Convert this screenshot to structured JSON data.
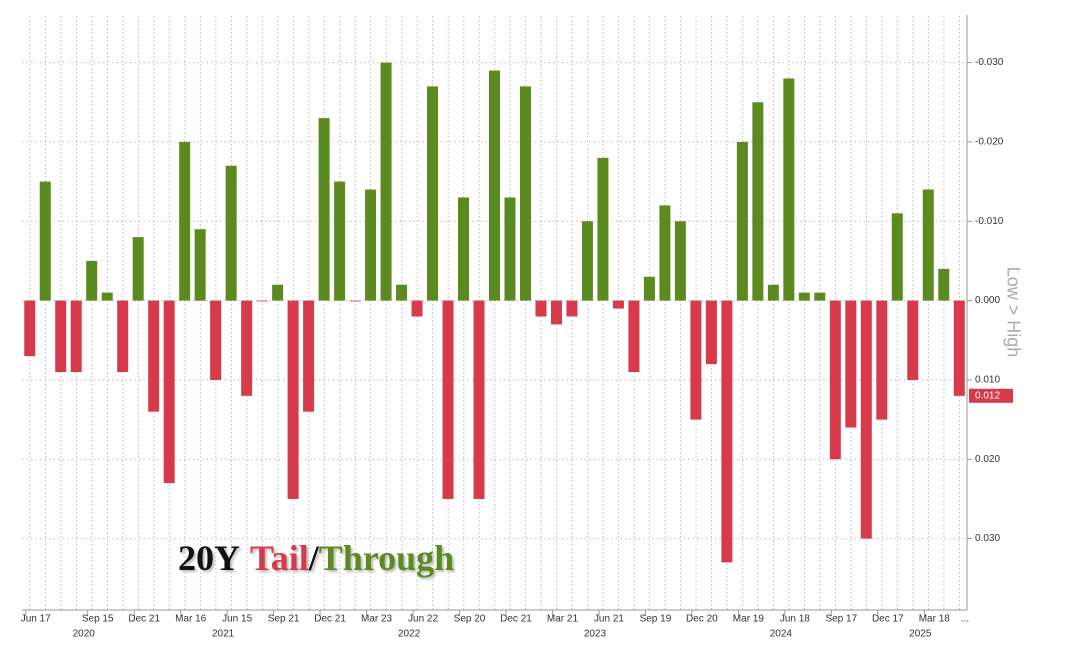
{
  "chart_data": {
    "type": "bar",
    "annotation": [
      "20Y",
      "Tail",
      "/",
      "Through"
    ],
    "y_axis_label": "Low > High",
    "categories": [
      "Jun 17",
      null,
      null,
      null,
      "Sep 15",
      null,
      null,
      "Dec 21",
      null,
      null,
      "Mar 16",
      null,
      null,
      "Jun 15",
      null,
      null,
      "Sep 21",
      null,
      null,
      "Dec 21",
      null,
      null,
      "Mar 23",
      null,
      null,
      "Jun 22",
      null,
      null,
      "Sep 20",
      null,
      null,
      "Dec 21",
      null,
      null,
      "Mar 21",
      null,
      null,
      "Jun 21",
      null,
      null,
      "Sep 19",
      null,
      null,
      "Dec 20",
      null,
      null,
      "Mar 19",
      null,
      null,
      "Jun 18",
      null,
      null,
      "Sep 17",
      null,
      null,
      "Dec 17",
      null,
      null,
      "Mar 18",
      null,
      null
    ],
    "year_labels": [
      null,
      null,
      null,
      null,
      "2020",
      null,
      null,
      null,
      null,
      null,
      null,
      null,
      null,
      "2021",
      null,
      null,
      null,
      null,
      null,
      null,
      null,
      null,
      null,
      null,
      null,
      "2022",
      null,
      null,
      null,
      null,
      null,
      null,
      null,
      null,
      null,
      null,
      null,
      "2023",
      null,
      null,
      null,
      null,
      null,
      null,
      null,
      null,
      null,
      null,
      null,
      "2024",
      null,
      null,
      null,
      null,
      null,
      null,
      null,
      null,
      "2025",
      null,
      null
    ],
    "x_more_label": "...",
    "values": [
      0.007,
      -0.015,
      0.009,
      0.009,
      -0.005,
      -0.001,
      0.009,
      -0.008,
      0.014,
      0.023,
      -0.02,
      -0.009,
      0.01,
      -0.017,
      0.012,
      0.0,
      -0.002,
      0.025,
      0.014,
      -0.023,
      -0.015,
      0.0,
      -0.014,
      -0.03,
      -0.002,
      0.002,
      -0.027,
      0.025,
      -0.013,
      0.025,
      -0.029,
      -0.013,
      -0.027,
      0.002,
      0.003,
      0.002,
      -0.01,
      -0.018,
      0.001,
      0.009,
      -0.003,
      -0.012,
      -0.01,
      0.015,
      0.008,
      0.033,
      -0.02,
      -0.025,
      -0.002,
      -0.028,
      -0.001,
      -0.001,
      0.02,
      0.016,
      0.03,
      0.015,
      -0.011,
      0.01,
      -0.014,
      -0.004,
      0.012
    ],
    "value_labels": [
      null,
      null,
      null,
      null,
      null,
      null,
      null,
      null,
      null,
      null,
      null,
      null,
      null,
      null,
      null,
      null,
      null,
      null,
      null,
      null,
      null,
      null,
      null,
      null,
      null,
      null,
      null,
      null,
      null,
      null,
      null,
      null,
      null,
      null,
      null,
      null,
      null,
      null,
      null,
      null,
      null,
      null,
      null,
      null,
      null,
      null,
      null,
      null,
      null,
      null,
      null,
      null,
      null,
      null,
      null,
      null,
      null,
      null,
      null,
      null,
      "0.012"
    ],
    "color_positive": "#d63a4b",
    "color_negative": "#5b8a1f",
    "ylim": [
      0.039,
      -0.036
    ],
    "yticks": [
      {
        "value": -0.03,
        "label": "-0.030"
      },
      {
        "value": -0.02,
        "label": "-0.020"
      },
      {
        "value": -0.01,
        "label": "-0.010"
      },
      {
        "value": 0,
        "label": "0.000"
      },
      {
        "value": 0.01,
        "label": "0.010"
      },
      {
        "value": 0.02,
        "label": "0.020"
      },
      {
        "value": 0.03,
        "label": "0.030"
      }
    ],
    "grid": true
  }
}
